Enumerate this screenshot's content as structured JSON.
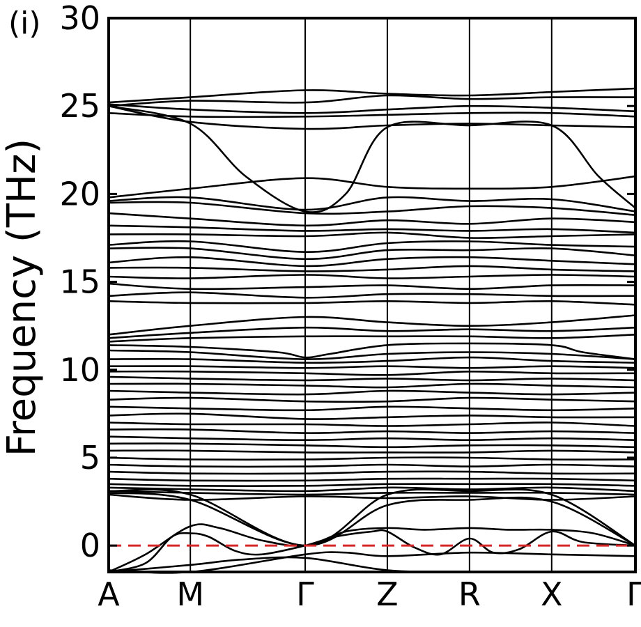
{
  "panel_label": "(i)",
  "chart_data": {
    "type": "line",
    "title": "",
    "xlabel": "",
    "ylabel": "Frequency (THz)",
    "ylim": [
      -1.5,
      30
    ],
    "yticks": [
      0,
      5,
      10,
      15,
      20,
      25,
      30
    ],
    "ytick_labels": [
      "0",
      "5",
      "10",
      "15",
      "20",
      "25",
      "30"
    ],
    "kpoints": [
      {
        "label": "A",
        "x": 0.0
      },
      {
        "label": "M",
        "x": 0.155
      },
      {
        "label": "Γ",
        "x": 0.373
      },
      {
        "label": "Z",
        "x": 0.529
      },
      {
        "label": "R",
        "x": 0.685
      },
      {
        "label": "X",
        "x": 0.841
      },
      {
        "label": "Γ",
        "x": 1.0
      }
    ],
    "reference_line": {
      "y": 0,
      "style": "dashed",
      "color": "#d62728"
    },
    "colors": {
      "bands": "#000000",
      "zero_line": "#d62728"
    },
    "series": [
      {
        "x": [
          0,
          0.155,
          0.373,
          0.529,
          0.685,
          0.841,
          1.0
        ],
        "values": [
          25.2,
          25.5,
          25.9,
          25.7,
          25.6,
          25.8,
          26.0
        ]
      },
      {
        "x": [
          0,
          0.155,
          0.373,
          0.529,
          0.685,
          0.841,
          1.0
        ],
        "values": [
          25.0,
          25.3,
          25.2,
          25.6,
          25.4,
          25.5,
          25.5
        ]
      },
      {
        "x": [
          0,
          0.155,
          0.373,
          0.529,
          0.685,
          0.841,
          1.0
        ],
        "values": [
          25.1,
          24.8,
          24.6,
          24.8,
          25.0,
          24.9,
          24.7
        ]
      },
      {
        "x": [
          0,
          0.155,
          0.373,
          0.529,
          0.685,
          0.841,
          1.0
        ],
        "values": [
          24.6,
          24.4,
          24.4,
          24.5,
          24.6,
          24.6,
          24.4
        ]
      },
      {
        "x": [
          0,
          0.155,
          0.373,
          0.529,
          0.685,
          0.841,
          1.0
        ],
        "values": [
          25.0,
          24.1,
          23.7,
          23.9,
          24.0,
          23.9,
          23.8
        ]
      },
      {
        "x": [
          0,
          0.155,
          0.26,
          0.373,
          0.45,
          0.529,
          0.685,
          0.841,
          0.93,
          1.0
        ],
        "values": [
          25.0,
          24.0,
          21.0,
          19.0,
          20.0,
          23.8,
          23.9,
          23.9,
          21.0,
          19.2
        ]
      },
      {
        "x": [
          0,
          0.155,
          0.373,
          0.529,
          0.685,
          0.841,
          1.0
        ],
        "values": [
          19.8,
          20.3,
          20.9,
          20.4,
          20.3,
          20.4,
          21.0
        ]
      },
      {
        "x": [
          0,
          0.155,
          0.373,
          0.529,
          0.685,
          0.841,
          1.0
        ],
        "values": [
          19.6,
          19.8,
          19.1,
          19.8,
          19.6,
          19.7,
          19.0
        ]
      },
      {
        "x": [
          0,
          0.155,
          0.373,
          0.529,
          0.685,
          0.841,
          1.0
        ],
        "values": [
          19.5,
          19.5,
          18.9,
          19.0,
          19.3,
          19.2,
          18.8
        ]
      },
      {
        "x": [
          0,
          0.155,
          0.373,
          0.529,
          0.685,
          0.841,
          1.0
        ],
        "values": [
          18.9,
          18.6,
          18.2,
          18.5,
          18.3,
          18.6,
          18.4
        ]
      },
      {
        "x": [
          0,
          0.155,
          0.373,
          0.529,
          0.685,
          0.841,
          1.0
        ],
        "values": [
          18.2,
          18.1,
          17.9,
          18.0,
          17.9,
          18.0,
          17.8
        ]
      },
      {
        "x": [
          0,
          0.155,
          0.373,
          0.529,
          0.685,
          0.841,
          1.0
        ],
        "values": [
          17.7,
          17.7,
          17.6,
          17.8,
          17.5,
          17.6,
          17.7
        ]
      },
      {
        "x": [
          0,
          0.155,
          0.373,
          0.529,
          0.685,
          0.841,
          1.0
        ],
        "values": [
          17.1,
          17.3,
          16.7,
          17.2,
          17.3,
          17.1,
          17.0
        ]
      },
      {
        "x": [
          0,
          0.155,
          0.373,
          0.529,
          0.685,
          0.841,
          1.0
        ],
        "values": [
          16.9,
          16.9,
          16.3,
          16.8,
          16.8,
          16.9,
          16.5
        ]
      },
      {
        "x": [
          0,
          0.155,
          0.373,
          0.529,
          0.685,
          0.841,
          1.0
        ],
        "values": [
          16.1,
          16.4,
          15.9,
          16.3,
          16.4,
          16.2,
          16.0
        ]
      },
      {
        "x": [
          0,
          0.155,
          0.373,
          0.529,
          0.685,
          0.841,
          1.0
        ],
        "values": [
          15.8,
          15.8,
          15.6,
          15.7,
          15.9,
          15.7,
          15.6
        ]
      },
      {
        "x": [
          0,
          0.155,
          0.373,
          0.529,
          0.685,
          0.841,
          1.0
        ],
        "values": [
          15.3,
          15.2,
          15.4,
          15.2,
          15.3,
          15.4,
          15.3
        ]
      },
      {
        "x": [
          0,
          0.155,
          0.373,
          0.529,
          0.685,
          0.841,
          1.0
        ],
        "values": [
          14.9,
          14.6,
          14.7,
          14.8,
          14.6,
          14.8,
          14.8
        ]
      },
      {
        "x": [
          0,
          0.155,
          0.373,
          0.529,
          0.685,
          0.841,
          1.0
        ],
        "values": [
          14.2,
          14.4,
          14.1,
          14.3,
          14.3,
          14.2,
          14.2
        ]
      },
      {
        "x": [
          0,
          0.155,
          0.373,
          0.529,
          0.685,
          0.841,
          1.0
        ],
        "values": [
          13.9,
          13.8,
          13.8,
          13.9,
          13.8,
          13.9,
          13.7
        ]
      },
      {
        "x": [
          0,
          0.155,
          0.373,
          0.529,
          0.685,
          0.841,
          1.0
        ],
        "values": [
          12.0,
          12.5,
          13.0,
          12.7,
          12.5,
          12.7,
          13.1
        ]
      },
      {
        "x": [
          0,
          0.155,
          0.373,
          0.529,
          0.685,
          0.841,
          1.0
        ],
        "values": [
          11.8,
          12.1,
          12.4,
          12.2,
          12.3,
          12.2,
          12.4
        ]
      },
      {
        "x": [
          0,
          0.155,
          0.373,
          0.529,
          0.685,
          0.841,
          1.0
        ],
        "values": [
          11.6,
          11.8,
          11.9,
          11.9,
          11.9,
          11.8,
          12.0
        ]
      },
      {
        "x": [
          0,
          0.155,
          0.32,
          0.373,
          0.42,
          0.529,
          0.685,
          0.841,
          0.9,
          1.0
        ],
        "values": [
          11.4,
          11.3,
          11.0,
          10.7,
          10.9,
          11.4,
          11.5,
          11.4,
          11.0,
          10.6
        ]
      },
      {
        "x": [
          0,
          0.155,
          0.373,
          0.529,
          0.685,
          0.841,
          1.0
        ],
        "values": [
          11.1,
          11.0,
          10.6,
          10.9,
          11.0,
          10.9,
          10.6
        ]
      },
      {
        "x": [
          0,
          0.155,
          0.373,
          0.529,
          0.685,
          0.841,
          1.0
        ],
        "values": [
          10.6,
          10.6,
          10.4,
          10.5,
          10.7,
          10.5,
          10.4
        ]
      },
      {
        "x": [
          0,
          0.155,
          0.373,
          0.529,
          0.685,
          0.841,
          1.0
        ],
        "values": [
          10.2,
          10.2,
          10.1,
          10.2,
          10.1,
          10.2,
          10.1
        ]
      },
      {
        "x": [
          0,
          0.155,
          0.373,
          0.529,
          0.685,
          0.841,
          1.0
        ],
        "values": [
          9.9,
          9.9,
          9.8,
          9.7,
          9.9,
          9.8,
          9.8
        ]
      },
      {
        "x": [
          0,
          0.155,
          0.373,
          0.529,
          0.685,
          0.841,
          1.0
        ],
        "values": [
          9.6,
          9.5,
          9.4,
          9.5,
          9.4,
          9.5,
          9.4
        ]
      },
      {
        "x": [
          0,
          0.155,
          0.373,
          0.529,
          0.685,
          0.841,
          1.0
        ],
        "values": [
          9.2,
          9.2,
          9.1,
          9.0,
          9.2,
          9.1,
          9.0
        ]
      },
      {
        "x": [
          0,
          0.155,
          0.373,
          0.529,
          0.685,
          0.841,
          1.0
        ],
        "values": [
          8.8,
          8.7,
          8.6,
          8.8,
          8.7,
          8.6,
          8.7
        ]
      },
      {
        "x": [
          0,
          0.155,
          0.373,
          0.529,
          0.685,
          0.841,
          1.0
        ],
        "values": [
          8.3,
          8.4,
          8.2,
          8.2,
          8.4,
          8.3,
          8.2
        ]
      },
      {
        "x": [
          0,
          0.155,
          0.373,
          0.529,
          0.685,
          0.841,
          1.0
        ],
        "values": [
          7.9,
          7.8,
          7.7,
          7.9,
          7.8,
          7.7,
          7.8
        ]
      },
      {
        "x": [
          0,
          0.155,
          0.373,
          0.529,
          0.685,
          0.841,
          1.0
        ],
        "values": [
          7.4,
          7.5,
          7.2,
          7.3,
          7.4,
          7.3,
          7.3
        ]
      },
      {
        "x": [
          0,
          0.155,
          0.373,
          0.529,
          0.685,
          0.841,
          1.0
        ],
        "values": [
          7.0,
          6.9,
          6.9,
          6.8,
          6.9,
          7.0,
          6.8
        ]
      },
      {
        "x": [
          0,
          0.155,
          0.373,
          0.529,
          0.685,
          0.841,
          1.0
        ],
        "values": [
          6.6,
          6.6,
          6.4,
          6.5,
          6.4,
          6.5,
          6.4
        ]
      },
      {
        "x": [
          0,
          0.155,
          0.373,
          0.529,
          0.685,
          0.841,
          1.0
        ],
        "values": [
          6.2,
          6.1,
          6.0,
          6.1,
          6.0,
          6.1,
          6.0
        ]
      },
      {
        "x": [
          0,
          0.155,
          0.373,
          0.529,
          0.685,
          0.841,
          1.0
        ],
        "values": [
          5.8,
          5.8,
          5.7,
          5.6,
          5.7,
          5.7,
          5.6
        ]
      },
      {
        "x": [
          0,
          0.155,
          0.373,
          0.529,
          0.685,
          0.841,
          1.0
        ],
        "values": [
          5.4,
          5.4,
          5.3,
          5.3,
          5.3,
          5.4,
          5.3
        ]
      },
      {
        "x": [
          0,
          0.155,
          0.373,
          0.529,
          0.685,
          0.841,
          1.0
        ],
        "values": [
          5.0,
          4.9,
          4.9,
          5.0,
          5.0,
          4.9,
          4.9
        ]
      },
      {
        "x": [
          0,
          0.155,
          0.373,
          0.529,
          0.685,
          0.841,
          1.0
        ],
        "values": [
          4.6,
          4.5,
          4.5,
          4.6,
          4.5,
          4.6,
          4.5
        ]
      },
      {
        "x": [
          0,
          0.155,
          0.373,
          0.529,
          0.685,
          0.841,
          1.0
        ],
        "values": [
          4.2,
          4.1,
          4.1,
          4.2,
          4.2,
          4.1,
          4.1
        ]
      },
      {
        "x": [
          0,
          0.155,
          0.373,
          0.529,
          0.685,
          0.841,
          1.0
        ],
        "values": [
          3.8,
          3.7,
          3.7,
          3.8,
          3.8,
          3.8,
          3.7
        ]
      },
      {
        "x": [
          0,
          0.155,
          0.373,
          0.529,
          0.685,
          0.841,
          1.0
        ],
        "values": [
          3.5,
          3.4,
          3.4,
          3.5,
          3.5,
          3.5,
          3.4
        ]
      },
      {
        "x": [
          0,
          0.155,
          0.373,
          0.529,
          0.685,
          0.841,
          1.0
        ],
        "values": [
          3.3,
          3.2,
          3.1,
          3.3,
          3.2,
          3.3,
          3.1
        ]
      },
      {
        "x": [
          0,
          0.155,
          0.373,
          0.529,
          0.685,
          0.841,
          1.0
        ],
        "values": [
          3.1,
          3.0,
          2.9,
          3.0,
          3.0,
          3.0,
          2.9
        ]
      },
      {
        "x": [
          0,
          0.155,
          0.373,
          0.529,
          0.685,
          0.841,
          1.0
        ],
        "values": [
          2.9,
          2.6,
          2.8,
          2.7,
          2.8,
          2.6,
          2.8
        ]
      },
      {
        "x": [
          0,
          0.155,
          0.373,
          0.529,
          0.685,
          0.841,
          1.0
        ],
        "values": [
          3.0,
          2.6,
          0.0,
          2.3,
          2.6,
          2.5,
          0.0
        ]
      },
      {
        "x": [
          0,
          0.155,
          0.373,
          0.529,
          0.685,
          0.841,
          1.0
        ],
        "values": [
          3.1,
          2.9,
          0.0,
          2.9,
          3.1,
          2.9,
          0.0
        ]
      },
      {
        "x": [
          0,
          0.07,
          0.155,
          0.21,
          0.29,
          0.373,
          0.45,
          0.529,
          0.6,
          0.685,
          0.76,
          0.841,
          0.92,
          1.0
        ],
        "values": [
          -1.5,
          -0.5,
          1.1,
          1.0,
          0.3,
          0.0,
          0.8,
          1.0,
          0.9,
          1.0,
          0.9,
          0.9,
          0.7,
          0.0
        ]
      },
      {
        "x": [
          0,
          0.07,
          0.12,
          0.155,
          0.19,
          0.24,
          0.29,
          0.373,
          0.43,
          0.5,
          0.529,
          0.58,
          0.63,
          0.685,
          0.73,
          0.78,
          0.841,
          0.9,
          1.0
        ],
        "values": [
          -1.5,
          -1.0,
          0.5,
          0.7,
          0.5,
          -0.3,
          -0.5,
          0.0,
          0.5,
          0.8,
          0.8,
          -0.1,
          -0.5,
          0.4,
          -0.4,
          -0.2,
          0.8,
          0.2,
          0.0
        ]
      },
      {
        "x": [
          0,
          0.155,
          0.25,
          0.373,
          0.529,
          0.685,
          0.841,
          1.0
        ],
        "values": [
          -1.5,
          -1.1,
          -0.8,
          -0.7,
          -1.4,
          -1.5,
          -1.5,
          -1.5
        ]
      },
      {
        "x": [
          0,
          0.155,
          0.373,
          0.45,
          0.529,
          0.685,
          0.841,
          1.0
        ],
        "values": [
          -1.4,
          -1.5,
          -0.5,
          -0.4,
          -0.6,
          -0.4,
          -0.5,
          -0.6
        ]
      }
    ]
  }
}
